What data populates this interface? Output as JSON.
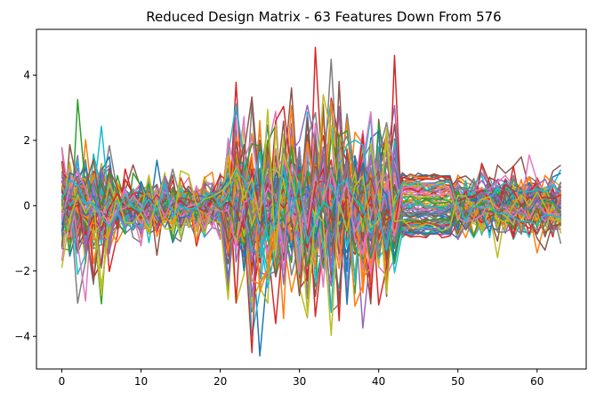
{
  "chart_data": {
    "type": "line",
    "title": "Reduced Design Matrix - 63 Features Down From 576",
    "xlabel": "",
    "ylabel": "",
    "xlim": [
      -3.2,
      66.2
    ],
    "ylim": [
      -5.0,
      5.4
    ],
    "x_ticks": [
      0,
      10,
      20,
      30,
      40,
      50,
      60
    ],
    "y_ticks": [
      -4,
      -2,
      0,
      2,
      4
    ],
    "x_tick_labels": [
      "0",
      "10",
      "20",
      "30",
      "40",
      "50",
      "60"
    ],
    "y_tick_labels": [
      "−4",
      "−2",
      "0",
      "2",
      "4"
    ],
    "n_points": 64,
    "n_series": 90,
    "grid": false,
    "legend": "none",
    "segments": [
      {
        "range": [
          0,
          6
        ],
        "amplitude": 1.6
      },
      {
        "range": [
          7,
          20
        ],
        "amplitude": 0.8
      },
      {
        "range": [
          21,
          42
        ],
        "amplitude": 2.4
      },
      {
        "range": [
          43,
          49
        ],
        "amplitude": 1.0
      },
      {
        "range": [
          50,
          63
        ],
        "amplitude": 0.8
      }
    ],
    "peaks": {
      "max": 4.85,
      "max_x": 32,
      "min": -4.6,
      "min_x": 25
    },
    "palette": [
      "#1f77b4",
      "#ff7f0e",
      "#2ca02c",
      "#d62728",
      "#9467bd",
      "#8c564b",
      "#e377c2",
      "#7f7f7f",
      "#bcbd22",
      "#17becf"
    ]
  }
}
